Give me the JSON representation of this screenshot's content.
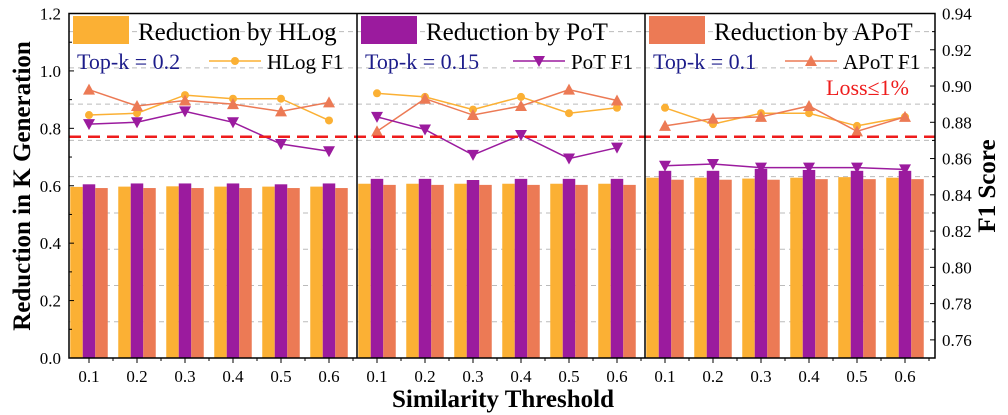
{
  "chart_data": {
    "type": "bar+line",
    "xlabel": "Similarity Threshold",
    "ylabel_left": "Reduction in K Generation",
    "ylabel_right": "F1 Score",
    "ylim_left": [
      0.0,
      1.2
    ],
    "ylim_right": [
      0.75,
      0.94
    ],
    "yticks_left": [
      "0.0",
      "0.2",
      "0.4",
      "0.6",
      "0.8",
      "1.0",
      "1.2"
    ],
    "yticks_right": [
      "0.76",
      "0.78",
      "0.80",
      "0.82",
      "0.84",
      "0.86",
      "0.88",
      "0.90",
      "0.92",
      "0.94"
    ],
    "categories": [
      "0.1",
      "0.2",
      "0.3",
      "0.4",
      "0.5",
      "0.6"
    ],
    "grid": "dashed horizontal",
    "threshold_line": {
      "value": 0.872,
      "label": "Loss≤1%",
      "color": "#EE1C1C"
    },
    "colors": {
      "HLog": "#FBB034",
      "PoT": "#9B1B9E",
      "APoT": "#EC7A55",
      "topk_text": "#1C1C8A"
    },
    "panels": [
      {
        "legend_bar": "Reduction by HLog",
        "topk": "Top-k = 0.2",
        "legend_line": "HLog F1",
        "legend_line_series": "HLog",
        "bars": {
          "HLog": [
            0.596,
            0.597,
            0.598,
            0.597,
            0.597,
            0.597
          ],
          "PoT": [
            0.605,
            0.608,
            0.608,
            0.608,
            0.605,
            0.608
          ],
          "APoT": [
            0.592,
            0.592,
            0.592,
            0.592,
            0.592,
            0.592
          ]
        },
        "f1": {
          "HLog": [
            0.884,
            0.885,
            0.895,
            0.893,
            0.893,
            0.881
          ],
          "PoT": [
            0.879,
            0.88,
            0.886,
            0.88,
            0.868,
            0.864
          ],
          "APoT": [
            0.898,
            0.889,
            0.892,
            0.89,
            0.886,
            0.891
          ]
        }
      },
      {
        "legend_bar": "Reduction by PoT",
        "topk": "Top-k = 0.15",
        "legend_line": "PoT F1",
        "legend_line_series": "PoT",
        "bars": {
          "HLog": [
            0.607,
            0.607,
            0.607,
            0.607,
            0.607,
            0.607
          ],
          "PoT": [
            0.624,
            0.624,
            0.62,
            0.624,
            0.624,
            0.624
          ],
          "APoT": [
            0.603,
            0.603,
            0.603,
            0.603,
            0.603,
            0.603
          ]
        },
        "f1": {
          "HLog": [
            0.896,
            0.894,
            0.887,
            0.894,
            0.885,
            0.888
          ],
          "PoT": [
            0.883,
            0.876,
            0.862,
            0.873,
            0.86,
            0.866
          ],
          "APoT": [
            0.875,
            0.893,
            0.884,
            0.889,
            0.898,
            0.892
          ]
        }
      },
      {
        "legend_bar": "Reduction by APoT",
        "topk": "Top-k = 0.1",
        "legend_line": "APoT F1",
        "legend_line_series": "APoT",
        "bars": {
          "HLog": [
            0.628,
            0.628,
            0.625,
            0.628,
            0.63,
            0.628
          ],
          "PoT": [
            0.652,
            0.652,
            0.659,
            0.655,
            0.652,
            0.652
          ],
          "APoT": [
            0.621,
            0.621,
            0.621,
            0.623,
            0.623,
            0.623
          ]
        },
        "f1": {
          "HLog": [
            0.888,
            0.879,
            0.885,
            0.885,
            0.878,
            0.883
          ],
          "PoT": [
            0.856,
            0.857,
            0.855,
            0.855,
            0.855,
            0.854
          ],
          "APoT": [
            0.878,
            0.882,
            0.883,
            0.889,
            0.875,
            0.883
          ]
        }
      }
    ]
  }
}
